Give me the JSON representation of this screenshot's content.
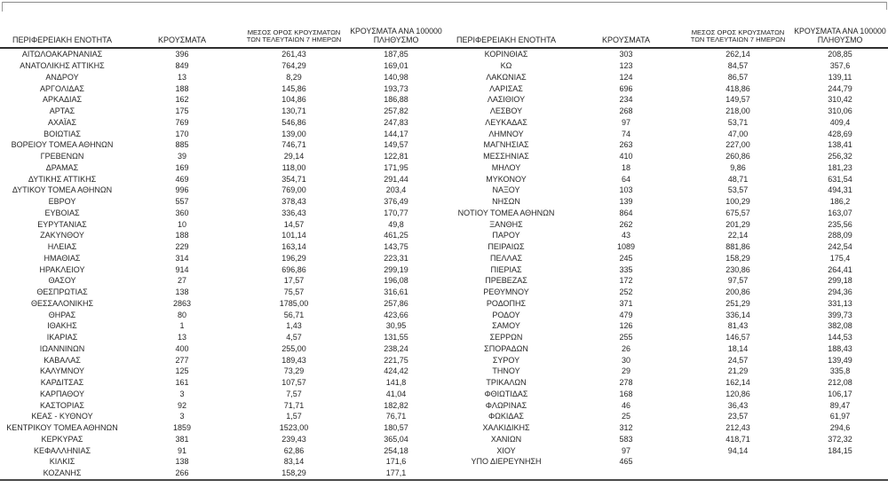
{
  "page": {
    "background_color": "#ffffff",
    "text_color": "#262626",
    "rule_dark_color": "#3a3a3a",
    "rule_gray_color": "#8a8a8a"
  },
  "table": {
    "columns": {
      "region": "ΠΕΡΙΦΕΡΕΙΑΚΗ ΕΝΟΤΗΤΑ",
      "cases": "ΚΡΟΥΣΜΑΤΑ",
      "avg7_line1": "ΜΕΣΟΣ ΟΡΟΣ ΚΡΟΥΣΜΑΤΩΝ",
      "avg7_line2": "ΤΩΝ ΤΕΛΕΥΤΑΙΩΝ 7 ΗΜΕΡΩΝ",
      "per100k_line1": "ΚΡΟΥΣΜΑΤΑ ΑΝΑ 100000",
      "per100k_line2": "ΠΛΗΘΥΣΜΟ"
    },
    "left_rows": [
      [
        "ΑΙΤΩΛΟΑΚΑΡΝΑΝΙΑΣ",
        "396",
        "261,43",
        "187,85"
      ],
      [
        "ΑΝΑΤΟΛΙΚΗΣ ΑΤΤΙΚΗΣ",
        "849",
        "764,29",
        "169,01"
      ],
      [
        "ΑΝΔΡΟΥ",
        "13",
        "8,29",
        "140,98"
      ],
      [
        "ΑΡΓΟΛΙΔΑΣ",
        "188",
        "145,86",
        "193,73"
      ],
      [
        "ΑΡΚΑΔΙΑΣ",
        "162",
        "104,86",
        "186,88"
      ],
      [
        "ΑΡΤΑΣ",
        "175",
        "130,71",
        "257,82"
      ],
      [
        "ΑΧΑΪΑΣ",
        "769",
        "546,86",
        "247,83"
      ],
      [
        "ΒΟΙΩΤΙΑΣ",
        "170",
        "139,00",
        "144,17"
      ],
      [
        "ΒΟΡΕΙΟΥ ΤΟΜΕΑ ΑΘΗΝΩΝ",
        "885",
        "746,71",
        "149,57"
      ],
      [
        "ΓΡΕΒΕΝΩΝ",
        "39",
        "29,14",
        "122,81"
      ],
      [
        "ΔΡΑΜΑΣ",
        "169",
        "118,00",
        "171,95"
      ],
      [
        "ΔΥΤΙΚΗΣ ΑΤΤΙΚΗΣ",
        "469",
        "354,71",
        "291,44"
      ],
      [
        "ΔΥΤΙΚΟΥ ΤΟΜΕΑ ΑΘΗΝΩΝ",
        "996",
        "769,00",
        "203,4"
      ],
      [
        "ΕΒΡΟΥ",
        "557",
        "378,43",
        "376,49"
      ],
      [
        "ΕΥΒΟΙΑΣ",
        "360",
        "336,43",
        "170,77"
      ],
      [
        "ΕΥΡΥΤΑΝΙΑΣ",
        "10",
        "14,57",
        "49,8"
      ],
      [
        "ΖΑΚΥΝΘΟΥ",
        "188",
        "101,14",
        "461,25"
      ],
      [
        "ΗΛΕΙΑΣ",
        "229",
        "163,14",
        "143,75"
      ],
      [
        "ΗΜΑΘΙΑΣ",
        "314",
        "196,29",
        "223,31"
      ],
      [
        "ΗΡΑΚΛΕΙΟΥ",
        "914",
        "696,86",
        "299,19"
      ],
      [
        "ΘΑΣΟΥ",
        "27",
        "17,57",
        "196,08"
      ],
      [
        "ΘΕΣΠΡΩΤΙΑΣ",
        "138",
        "75,57",
        "316,61"
      ],
      [
        "ΘΕΣΣΑΛΟΝΙΚΗΣ",
        "2863",
        "1785,00",
        "257,86"
      ],
      [
        "ΘΗΡΑΣ",
        "80",
        "56,71",
        "423,66"
      ],
      [
        "ΙΘΑΚΗΣ",
        "1",
        "1,43",
        "30,95"
      ],
      [
        "ΙΚΑΡΙΑΣ",
        "13",
        "4,57",
        "131,55"
      ],
      [
        "ΙΩΑΝΝΙΝΩΝ",
        "400",
        "255,00",
        "238,24"
      ],
      [
        "ΚΑΒΑΛΑΣ",
        "277",
        "189,43",
        "221,75"
      ],
      [
        "ΚΑΛΥΜΝΟΥ",
        "125",
        "73,29",
        "424,42"
      ],
      [
        "ΚΑΡΔΙΤΣΑΣ",
        "161",
        "107,57",
        "141,8"
      ],
      [
        "ΚΑΡΠΑΘΟΥ",
        "3",
        "7,57",
        "41,04"
      ],
      [
        "ΚΑΣΤΟΡΙΑΣ",
        "92",
        "71,71",
        "182,82"
      ],
      [
        "ΚΕΑΣ - ΚΥΘΝΟΥ",
        "3",
        "1,57",
        "76,71"
      ],
      [
        "ΚΕΝΤΡΙΚΟΥ ΤΟΜΕΑ ΑΘΗΝΩΝ",
        "1859",
        "1523,00",
        "180,57"
      ],
      [
        "ΚΕΡΚΥΡΑΣ",
        "381",
        "239,43",
        "365,04"
      ],
      [
        "ΚΕΦΑΛΛΗΝΙΑΣ",
        "91",
        "62,86",
        "254,18"
      ],
      [
        "ΚΙΛΚΙΣ",
        "138",
        "83,14",
        "171,6"
      ],
      [
        "ΚΟΖΑΝΗΣ",
        "266",
        "158,29",
        "177,1"
      ]
    ],
    "right_rows": [
      [
        "ΚΟΡΙΝΘΙΑΣ",
        "303",
        "262,14",
        "208,85"
      ],
      [
        "ΚΩ",
        "123",
        "84,57",
        "357,6"
      ],
      [
        "ΛΑΚΩΝΙΑΣ",
        "124",
        "86,57",
        "139,11"
      ],
      [
        "ΛΑΡΙΣΑΣ",
        "696",
        "418,86",
        "244,79"
      ],
      [
        "ΛΑΣΙΘΙΟΥ",
        "234",
        "149,57",
        "310,42"
      ],
      [
        "ΛΕΣΒΟΥ",
        "268",
        "218,00",
        "310,06"
      ],
      [
        "ΛΕΥΚΑΔΑΣ",
        "97",
        "53,71",
        "409,4"
      ],
      [
        "ΛΗΜΝΟΥ",
        "74",
        "47,00",
        "428,69"
      ],
      [
        "ΜΑΓΝΗΣΙΑΣ",
        "263",
        "227,00",
        "138,41"
      ],
      [
        "ΜΕΣΣΗΝΙΑΣ",
        "410",
        "260,86",
        "256,32"
      ],
      [
        "ΜΗΛΟΥ",
        "18",
        "9,86",
        "181,23"
      ],
      [
        "ΜΥΚΟΝΟΥ",
        "64",
        "48,71",
        "631,54"
      ],
      [
        "ΝΑΞΟΥ",
        "103",
        "53,57",
        "494,31"
      ],
      [
        "ΝΗΣΩΝ",
        "139",
        "100,29",
        "186,2"
      ],
      [
        "ΝΟΤΙΟΥ ΤΟΜΕΑ ΑΘΗΝΩΝ",
        "864",
        "675,57",
        "163,07"
      ],
      [
        "ΞΑΝΘΗΣ",
        "262",
        "201,29",
        "235,56"
      ],
      [
        "ΠΑΡΟΥ",
        "43",
        "22,14",
        "288,09"
      ],
      [
        "ΠΕΙΡΑΙΩΣ",
        "1089",
        "881,86",
        "242,54"
      ],
      [
        "ΠΕΛΛΑΣ",
        "245",
        "158,29",
        "175,4"
      ],
      [
        "ΠΙΕΡΙΑΣ",
        "335",
        "230,86",
        "264,41"
      ],
      [
        "ΠΡΕΒΕΖΑΣ",
        "172",
        "97,57",
        "299,18"
      ],
      [
        "ΡΕΘΥΜΝΟΥ",
        "252",
        "200,86",
        "294,36"
      ],
      [
        "ΡΟΔΟΠΗΣ",
        "371",
        "251,29",
        "331,13"
      ],
      [
        "ΡΟΔΟΥ",
        "479",
        "336,14",
        "399,73"
      ],
      [
        "ΣΑΜΟΥ",
        "126",
        "81,43",
        "382,08"
      ],
      [
        "ΣΕΡΡΩΝ",
        "255",
        "146,57",
        "144,53"
      ],
      [
        "ΣΠΟΡΑΔΩΝ",
        "26",
        "18,14",
        "188,43"
      ],
      [
        "ΣΥΡΟΥ",
        "30",
        "24,57",
        "139,49"
      ],
      [
        "ΤΗΝΟΥ",
        "29",
        "21,29",
        "335,8"
      ],
      [
        "ΤΡΙΚΑΛΩΝ",
        "278",
        "162,14",
        "212,08"
      ],
      [
        "ΦΘΙΩΤΙΔΑΣ",
        "168",
        "120,86",
        "106,17"
      ],
      [
        "ΦΛΩΡΙΝΑΣ",
        "46",
        "36,43",
        "89,47"
      ],
      [
        "ΦΩΚΙΔΑΣ",
        "25",
        "23,57",
        "61,97"
      ],
      [
        "ΧΑΛΚΙΔΙΚΗΣ",
        "312",
        "212,43",
        "294,6"
      ],
      [
        "ΧΑΝΙΩΝ",
        "583",
        "418,71",
        "372,32"
      ],
      [
        "ΧΙΟΥ",
        "97",
        "94,14",
        "184,15"
      ],
      [
        "ΥΠΟ ΔΙΕΡΕΥΝΗΣΗ",
        "465",
        "",
        ""
      ]
    ]
  }
}
